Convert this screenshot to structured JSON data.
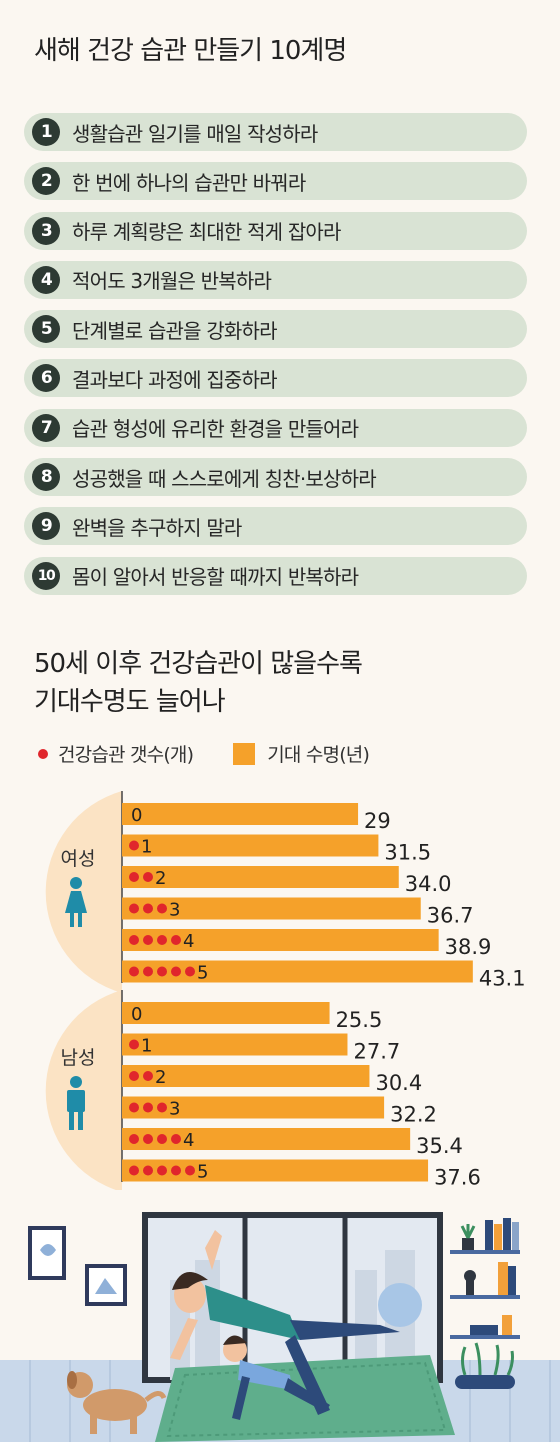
{
  "title": "새해 건강 습관 만들기 10계명",
  "rules": [
    {
      "num": "1",
      "text": "생활습관 일기를 매일 작성하라"
    },
    {
      "num": "2",
      "text": "한 번에 하나의 습관만 바꿔라"
    },
    {
      "num": "3",
      "text": "하루 계획량은 최대한 적게 잡아라"
    },
    {
      "num": "4",
      "text": "적어도 3개월은 반복하라"
    },
    {
      "num": "5",
      "text": "단계별로 습관을 강화하라"
    },
    {
      "num": "6",
      "text": "결과보다 과정에 집중하라"
    },
    {
      "num": "7",
      "text": "습관 형성에 유리한 환경을 만들어라"
    },
    {
      "num": "8",
      "text": "성공했을 때 스스로에게 칭찬·보상하라"
    },
    {
      "num": "9",
      "text": "완벽을 추구하지 말라"
    },
    {
      "num": "10",
      "text": "몸이 알아서 반응할 때까지 반복하라"
    }
  ],
  "chart_title_line1": "50세 이후 건강습관이 많을수록",
  "chart_title_line2": "기대수명도 늘어나",
  "legend": {
    "dots_label": "건강습관 갯수(개)",
    "bar_label": "기대 수명(년)"
  },
  "colors": {
    "bar": "#f5a12a",
    "dot": "#e0262c",
    "group_bg": "#fbe3c4",
    "person_icon": "#1f8ca8",
    "rule_bg": "#d9e3d4"
  },
  "chart_data": {
    "type": "bar",
    "orientation": "horizontal",
    "categories": [
      "0",
      "1",
      "2",
      "3",
      "4",
      "5"
    ],
    "series": [
      {
        "name": "여성",
        "values": [
          29,
          31.5,
          34.0,
          36.7,
          38.9,
          43.1
        ],
        "labels": [
          "29",
          "31.5",
          "34.0",
          "36.7",
          "38.9",
          "43.1"
        ]
      },
      {
        "name": "남성",
        "values": [
          25.5,
          27.7,
          30.4,
          32.2,
          35.4,
          37.6
        ],
        "labels": [
          "25.5",
          "27.7",
          "30.4",
          "32.2",
          "35.4",
          "37.6"
        ]
      }
    ],
    "legend": [
      "건강습관 갯수(개)",
      "기대 수명(년)"
    ]
  }
}
